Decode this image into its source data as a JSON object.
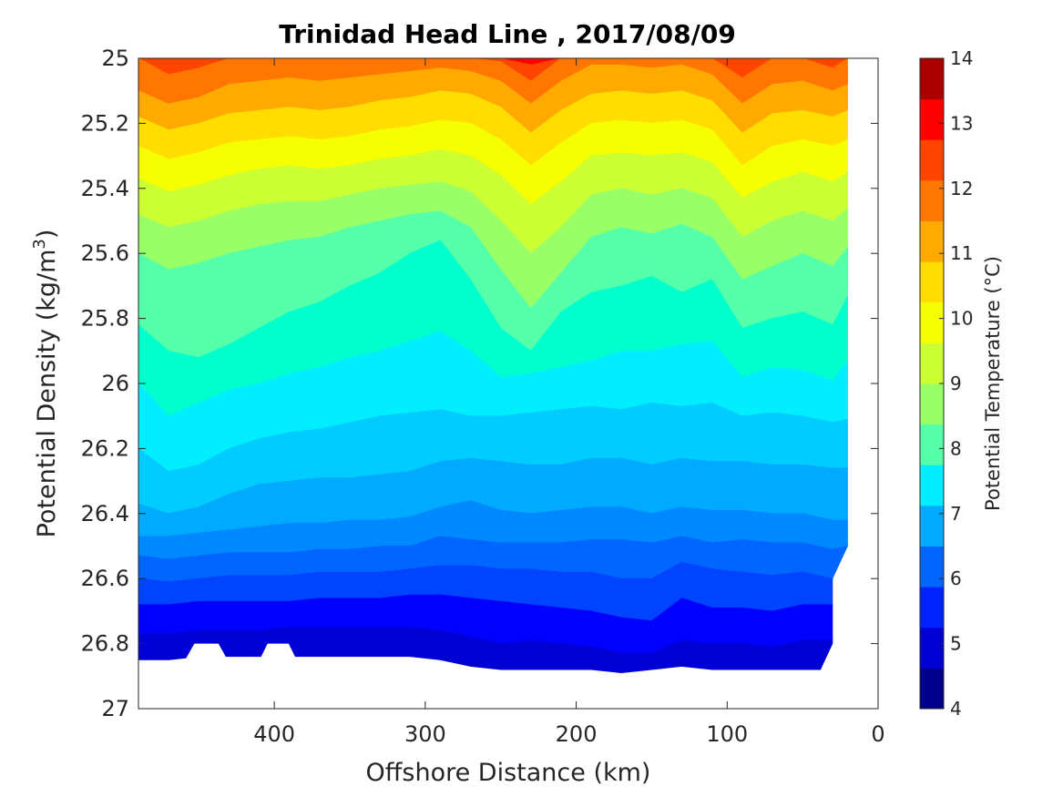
{
  "chart_data": {
    "type": "heatmap",
    "subtype": "filled-contour",
    "title": "Trinidad Head Line , 2017/08/09",
    "xlabel": "Offshore Distance (km)",
    "ylabel": "Potential Density (kg/m³)",
    "ylabel_main": "Potential Density (kg/m",
    "ylabel_sup": "3",
    "ylabel_close": ")",
    "xlim": [
      490,
      0
    ],
    "ylim": [
      25,
      27
    ],
    "x_reversed": true,
    "y_reversed": true,
    "xticks": [
      400,
      300,
      200,
      100,
      0
    ],
    "xtick_labels": [
      "400",
      "300",
      "200",
      "100",
      "0"
    ],
    "yticks": [
      25,
      25.2,
      25.4,
      25.6,
      25.8,
      26,
      26.2,
      26.4,
      26.6,
      26.8,
      27
    ],
    "ytick_labels": [
      "25",
      "25.2",
      "25.4",
      "25.6",
      "25.8",
      "26",
      "26.2",
      "26.4",
      "26.6",
      "26.8",
      "27"
    ],
    "colorbar": {
      "label": "Potential Temperature (°C)",
      "min": 4,
      "max": 14,
      "ticks": [
        4,
        5,
        6,
        7,
        8,
        9,
        10,
        11,
        12,
        13,
        14
      ],
      "tick_labels": [
        "4",
        "5",
        "6",
        "7",
        "8",
        "9",
        "10",
        "11",
        "12",
        "13",
        "14"
      ],
      "band_colors": [
        "#00008c",
        "#0000d4",
        "#0022ff",
        "#0066ff",
        "#00aaff",
        "#00eeff",
        "#55ffaa",
        "#99ff66",
        "#ccff33",
        "#f5ff00",
        "#ffdd00",
        "#ffaa00",
        "#ff7700",
        "#ff4400",
        "#ff0000",
        "#aa0000"
      ]
    },
    "band_temperature_ranges_degC": [
      [
        13,
        13.5
      ],
      [
        12.5,
        13
      ],
      [
        12,
        12.5
      ],
      [
        11.5,
        12
      ],
      [
        11,
        11.5
      ],
      [
        10.5,
        11
      ],
      [
        10,
        10.5
      ],
      [
        9.5,
        10
      ],
      [
        9,
        9.5
      ],
      [
        8.5,
        9
      ],
      [
        8,
        8.5
      ],
      [
        7.5,
        8
      ],
      [
        7,
        7.5
      ],
      [
        6.5,
        7
      ],
      [
        6,
        6.5
      ],
      [
        5.5,
        6
      ],
      [
        5,
        5.5
      ],
      [
        4.5,
        5
      ]
    ],
    "band_colors_top_to_bottom": [
      "#ff0000",
      "#ff4400",
      "#ff7700",
      "#ffaa00",
      "#ffdd00",
      "#f5ff00",
      "#ccff33",
      "#99ff66",
      "#55ffaa",
      "#00ffcc",
      "#00eeff",
      "#00ccff",
      "#00aaff",
      "#0088ff",
      "#0066ff",
      "#0044ff",
      "#0000ff",
      "#0000d4"
    ],
    "x": [
      490,
      470,
      450,
      430,
      410,
      390,
      370,
      350,
      330,
      310,
      290,
      270,
      250,
      230,
      210,
      190,
      170,
      150,
      130,
      110,
      90,
      70,
      50,
      30,
      20
    ],
    "contour_boundaries_sigma": [
      [
        25.0,
        25.0,
        25.0,
        25.0,
        25.0,
        25.0,
        25.0,
        25.0,
        25.0,
        25.0,
        25.0,
        25.0,
        25.0,
        25.0,
        25.0,
        25.0,
        25.0,
        25.0,
        25.0,
        25.0,
        25.0,
        25.0,
        25.0,
        25.0,
        25.0
      ],
      [
        25.0,
        25.0,
        25.0,
        25.0,
        25.0,
        25.0,
        25.0,
        25.0,
        25.0,
        25.0,
        25.0,
        25.0,
        25.0,
        25.02,
        25.0,
        25.0,
        25.0,
        25.0,
        25.0,
        25.0,
        25.0,
        25.0,
        25.0,
        25.0,
        25.0
      ],
      [
        25.0,
        25.05,
        25.03,
        25.0,
        25.0,
        25.0,
        25.0,
        25.0,
        25.0,
        25.0,
        25.0,
        25.0,
        25.01,
        25.07,
        25.0,
        25.0,
        25.0,
        25.0,
        25.0,
        25.0,
        25.06,
        25.0,
        25.0,
        25.03,
        25.0
      ],
      [
        25.1,
        25.14,
        25.12,
        25.08,
        25.07,
        25.06,
        25.07,
        25.06,
        25.05,
        25.04,
        25.03,
        25.04,
        25.07,
        25.14,
        25.07,
        25.02,
        25.02,
        25.03,
        25.02,
        25.05,
        25.14,
        25.08,
        25.07,
        25.1,
        25.08
      ],
      [
        25.18,
        25.22,
        25.2,
        25.17,
        25.16,
        25.15,
        25.16,
        25.15,
        25.13,
        25.12,
        25.1,
        25.11,
        25.15,
        25.23,
        25.16,
        25.11,
        25.1,
        25.11,
        25.1,
        25.13,
        25.23,
        25.17,
        25.16,
        25.18,
        25.16
      ],
      [
        25.27,
        25.31,
        25.29,
        25.26,
        25.25,
        25.24,
        25.25,
        25.24,
        25.22,
        25.21,
        25.19,
        25.2,
        25.25,
        25.33,
        25.26,
        25.2,
        25.19,
        25.2,
        25.19,
        25.22,
        25.33,
        25.27,
        25.25,
        25.27,
        25.25
      ],
      [
        25.37,
        25.41,
        25.39,
        25.36,
        25.34,
        25.33,
        25.34,
        25.33,
        25.31,
        25.3,
        25.28,
        25.3,
        25.36,
        25.45,
        25.38,
        25.3,
        25.29,
        25.3,
        25.29,
        25.32,
        25.43,
        25.38,
        25.35,
        25.38,
        25.35
      ],
      [
        25.48,
        25.52,
        25.5,
        25.47,
        25.45,
        25.44,
        25.44,
        25.42,
        25.4,
        25.39,
        25.38,
        25.41,
        25.5,
        25.6,
        25.52,
        25.42,
        25.4,
        25.42,
        25.4,
        25.43,
        25.55,
        25.5,
        25.47,
        25.5,
        25.46
      ],
      [
        25.6,
        25.65,
        25.63,
        25.6,
        25.58,
        25.56,
        25.55,
        25.52,
        25.5,
        25.48,
        25.47,
        25.52,
        25.65,
        25.77,
        25.66,
        25.55,
        25.52,
        25.54,
        25.51,
        25.55,
        25.68,
        25.64,
        25.6,
        25.64,
        25.58
      ],
      [
        25.82,
        25.9,
        25.92,
        25.88,
        25.83,
        25.78,
        25.75,
        25.7,
        25.66,
        25.6,
        25.56,
        25.68,
        25.83,
        25.9,
        25.78,
        25.72,
        25.7,
        25.67,
        25.72,
        25.68,
        25.83,
        25.8,
        25.78,
        25.82,
        25.73
      ],
      [
        26.0,
        26.1,
        26.06,
        26.02,
        26.0,
        25.97,
        25.95,
        25.92,
        25.9,
        25.87,
        25.84,
        25.9,
        25.98,
        25.97,
        25.95,
        25.93,
        25.9,
        25.9,
        25.88,
        25.87,
        25.98,
        25.95,
        25.96,
        25.99,
        25.93
      ],
      [
        26.2,
        26.27,
        26.25,
        26.2,
        26.17,
        26.15,
        26.14,
        26.12,
        26.1,
        26.09,
        26.08,
        26.1,
        26.1,
        26.09,
        26.08,
        26.07,
        26.08,
        26.06,
        26.07,
        26.06,
        26.1,
        26.09,
        26.1,
        26.12,
        26.11
      ],
      [
        26.37,
        26.4,
        26.38,
        26.34,
        26.31,
        26.3,
        26.29,
        26.29,
        26.28,
        26.27,
        26.24,
        26.23,
        26.24,
        26.25,
        26.25,
        26.23,
        26.23,
        26.25,
        26.23,
        26.24,
        26.24,
        26.25,
        26.25,
        26.26,
        26.26
      ],
      [
        26.47,
        26.47,
        26.46,
        26.45,
        26.44,
        26.43,
        26.43,
        26.42,
        26.42,
        26.41,
        26.38,
        26.36,
        26.39,
        26.4,
        26.39,
        26.38,
        26.38,
        26.4,
        26.38,
        26.39,
        26.39,
        26.4,
        26.4,
        26.42,
        26.42
      ],
      [
        26.53,
        26.54,
        26.53,
        26.52,
        26.52,
        26.52,
        26.51,
        26.51,
        26.5,
        26.5,
        26.47,
        26.48,
        26.49,
        26.49,
        26.49,
        26.48,
        26.48,
        26.49,
        26.47,
        26.49,
        26.48,
        26.49,
        26.49,
        26.51,
        26.5
      ],
      [
        26.6,
        26.61,
        26.6,
        26.59,
        26.59,
        26.59,
        26.58,
        26.58,
        26.58,
        26.57,
        26.56,
        26.56,
        26.57,
        26.57,
        26.58,
        26.58,
        26.6,
        26.6,
        26.55,
        26.57,
        26.58,
        26.59,
        26.58,
        26.6,
        26.59
      ],
      [
        26.68,
        26.68,
        26.67,
        26.67,
        26.67,
        26.67,
        26.66,
        26.66,
        26.66,
        26.65,
        26.65,
        26.66,
        26.67,
        26.68,
        26.69,
        26.7,
        26.72,
        26.73,
        26.66,
        26.69,
        26.69,
        26.7,
        26.68,
        26.68,
        26.68
      ],
      [
        26.77,
        26.77,
        26.76,
        26.76,
        26.76,
        26.75,
        26.75,
        26.75,
        26.75,
        26.75,
        26.76,
        26.78,
        26.8,
        26.79,
        26.8,
        26.81,
        26.83,
        26.83,
        26.79,
        26.8,
        26.8,
        26.81,
        26.79,
        26.79,
        26.78
      ],
      [
        26.85,
        26.85,
        26.84,
        26.84,
        26.84,
        26.84,
        26.84,
        26.84,
        26.84,
        26.84,
        26.85,
        26.87,
        26.88,
        26.88,
        26.88,
        26.88,
        26.89,
        26.88,
        26.87,
        26.88,
        26.88,
        26.88,
        26.88,
        26.88,
        26.88
      ],
      [
        26.9,
        26.9,
        26.9,
        26.9,
        26.9,
        26.9,
        26.9,
        26.9,
        26.9,
        26.9,
        26.9,
        26.9,
        26.9,
        26.9,
        26.9,
        26.9,
        26.9,
        26.9,
        26.9,
        26.9,
        26.9,
        26.9,
        26.9,
        26.9,
        26.9
      ]
    ],
    "data_bottom_sigma": 26.9,
    "data_gaps": [
      {
        "x_range_km": [
          465,
          425
        ],
        "top_sigma": 26.8
      },
      {
        "x_range_km": [
          415,
          380
        ],
        "top_sigma": 26.8
      }
    ],
    "nearshore_edge": [
      {
        "x_km": 20,
        "sigma": 25.0
      },
      {
        "x_km": 20,
        "sigma": 26.5
      },
      {
        "x_km": 30,
        "sigma": 26.6
      },
      {
        "x_km": 30,
        "sigma": 26.8
      },
      {
        "x_km": 40,
        "sigma": 26.9
      }
    ]
  }
}
